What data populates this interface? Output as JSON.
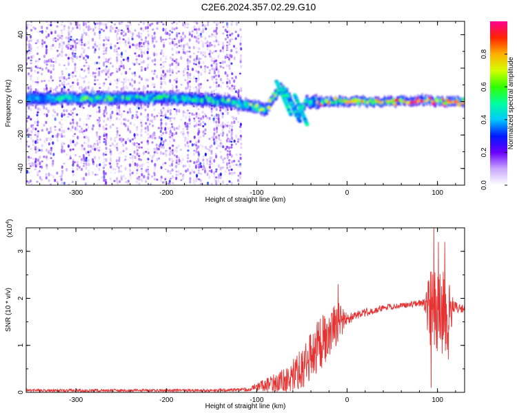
{
  "title": "C2E6.2024.357.02.29.G10",
  "chart_data": [
    {
      "type": "heatmap",
      "xlabel": "Height of straight line (km)",
      "ylabel": "Frequency (Hz)",
      "xlim": [
        -355,
        130
      ],
      "ylim": [
        -50,
        48
      ],
      "xticks": [
        -300,
        -200,
        -100,
        0,
        100
      ],
      "yticks": [
        -40,
        -20,
        0,
        20,
        40
      ],
      "grid": false,
      "colorbar": {
        "label": "Normalized spectral amplitude",
        "range": [
          0,
          1
        ],
        "ticks": [
          "0.0",
          "0.2",
          "0.4",
          "0.6",
          "0.8"
        ],
        "tick_values": [
          0,
          0.2,
          0.4,
          0.6,
          0.8
        ],
        "colors": [
          "#ffffff",
          "#c9a8ff",
          "#6a00ff",
          "#0018ff",
          "#00c8ff",
          "#00ff9c",
          "#30ff00",
          "#d6ff00",
          "#ffb000",
          "#ff2400",
          "#ff0090"
        ]
      },
      "noise_region": {
        "x_range": [
          -355,
          -118
        ],
        "y_range": [
          -50,
          48
        ],
        "typical_amplitude": 0.1
      },
      "band_core": [
        {
          "x": -355,
          "y": 2,
          "amp": 0.45
        },
        {
          "x": -300,
          "y": 2,
          "amp": 0.5
        },
        {
          "x": -250,
          "y": 2,
          "amp": 0.5
        },
        {
          "x": -200,
          "y": 2,
          "amp": 0.45
        },
        {
          "x": -150,
          "y": 1,
          "amp": 0.5
        },
        {
          "x": -110,
          "y": -2,
          "amp": 0.55
        },
        {
          "x": -90,
          "y": -5,
          "amp": 0.55
        },
        {
          "x": -75,
          "y": 8,
          "amp": 0.6
        },
        {
          "x": -65,
          "y": 3,
          "amp": 0.5
        },
        {
          "x": -55,
          "y": -8,
          "amp": 0.45
        },
        {
          "x": -45,
          "y": 0,
          "amp": 0.5
        },
        {
          "x": -25,
          "y": 0,
          "amp": 0.7
        },
        {
          "x": 0,
          "y": 0,
          "amp": 0.7
        },
        {
          "x": 50,
          "y": 0,
          "amp": 0.75
        },
        {
          "x": 85,
          "y": 1,
          "amp": 0.9
        },
        {
          "x": 100,
          "y": 0,
          "amp": 0.8
        },
        {
          "x": 130,
          "y": 0,
          "amp": 0.7
        }
      ]
    },
    {
      "type": "line",
      "xlabel": "Height of straight line (km)",
      "ylabel": "SNR (10 * v/v)",
      "y_multiplier": "(x10",
      "y_multiplier_exp": "4",
      "y_multiplier_close": ")",
      "xlim": [
        -355,
        130
      ],
      "ylim": [
        0,
        35000
      ],
      "xticks": [
        -300,
        -200,
        -100,
        0,
        100
      ],
      "yticks": [
        0,
        10000,
        20000,
        30000
      ],
      "ytick_labels": [
        "0",
        "1",
        "2",
        "3"
      ],
      "color": "#e83232",
      "grid": false,
      "envelope": [
        {
          "x": -355,
          "y": 400,
          "spread": 300
        },
        {
          "x": -150,
          "y": 400,
          "spread": 300
        },
        {
          "x": -110,
          "y": 600,
          "spread": 400
        },
        {
          "x": -90,
          "y": 1500,
          "spread": 1500
        },
        {
          "x": -70,
          "y": 2500,
          "spread": 2500
        },
        {
          "x": -50,
          "y": 5000,
          "spread": 4500
        },
        {
          "x": -40,
          "y": 7500,
          "spread": 5500
        },
        {
          "x": -30,
          "y": 10500,
          "spread": 6000
        },
        {
          "x": -20,
          "y": 13000,
          "spread": 5500
        },
        {
          "x": -10,
          "y": 15000,
          "spread": 4500
        },
        {
          "x": 0,
          "y": 15500,
          "spread": 1200
        },
        {
          "x": 20,
          "y": 17000,
          "spread": 900
        },
        {
          "x": 40,
          "y": 18000,
          "spread": 700
        },
        {
          "x": 60,
          "y": 18500,
          "spread": 600
        },
        {
          "x": 85,
          "y": 19000,
          "spread": 800
        },
        {
          "x": 92,
          "y": 18000,
          "spread": 9000
        },
        {
          "x": 110,
          "y": 16500,
          "spread": 9000
        },
        {
          "x": 118,
          "y": 18000,
          "spread": 1500
        },
        {
          "x": 130,
          "y": 17800,
          "spread": 700
        }
      ],
      "peaks": [
        {
          "x": -10,
          "y": 23000
        },
        {
          "x": 96,
          "y": 35000
        },
        {
          "x": 93,
          "y": 1000
        },
        {
          "x": 101,
          "y": 32000
        },
        {
          "x": 108,
          "y": 32000
        },
        {
          "x": 112,
          "y": 7000
        }
      ]
    }
  ]
}
